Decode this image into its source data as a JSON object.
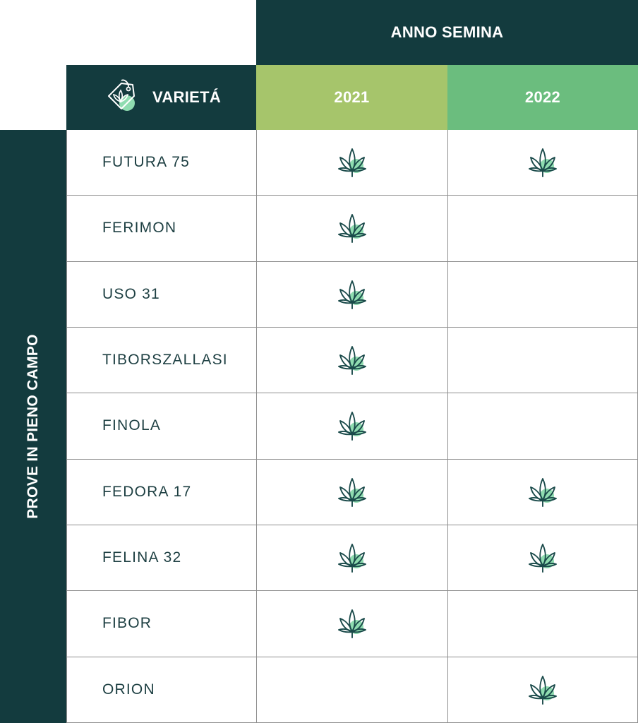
{
  "header": {
    "anno_semina": "ANNO SEMINA",
    "varieta": "VARIETÁ",
    "side_label": "PROVE IN PIENO CAMPO",
    "years": [
      {
        "label": "2021",
        "color": "#a6c56b"
      },
      {
        "label": "2022",
        "color": "#6bbd7e"
      }
    ]
  },
  "colors": {
    "dark": "#133b3e",
    "grid_line": "#8e8e8e",
    "leaf_stroke": "#1a4a4a",
    "leaf_accent": "#8fdcb0"
  },
  "rows": [
    {
      "name": "FUTURA 75",
      "y2021": true,
      "y2022": true
    },
    {
      "name": "FERIMON",
      "y2021": true,
      "y2022": false
    },
    {
      "name": "USO 31",
      "y2021": true,
      "y2022": false
    },
    {
      "name": "TIBORSZALLASI",
      "y2021": true,
      "y2022": false
    },
    {
      "name": "FINOLA",
      "y2021": true,
      "y2022": false
    },
    {
      "name": "FEDORA 17",
      "y2021": true,
      "y2022": true
    },
    {
      "name": "FELINA 32",
      "y2021": true,
      "y2022": true
    },
    {
      "name": "FIBOR",
      "y2021": true,
      "y2022": false
    },
    {
      "name": "ORION",
      "y2021": false,
      "y2022": true
    }
  ]
}
